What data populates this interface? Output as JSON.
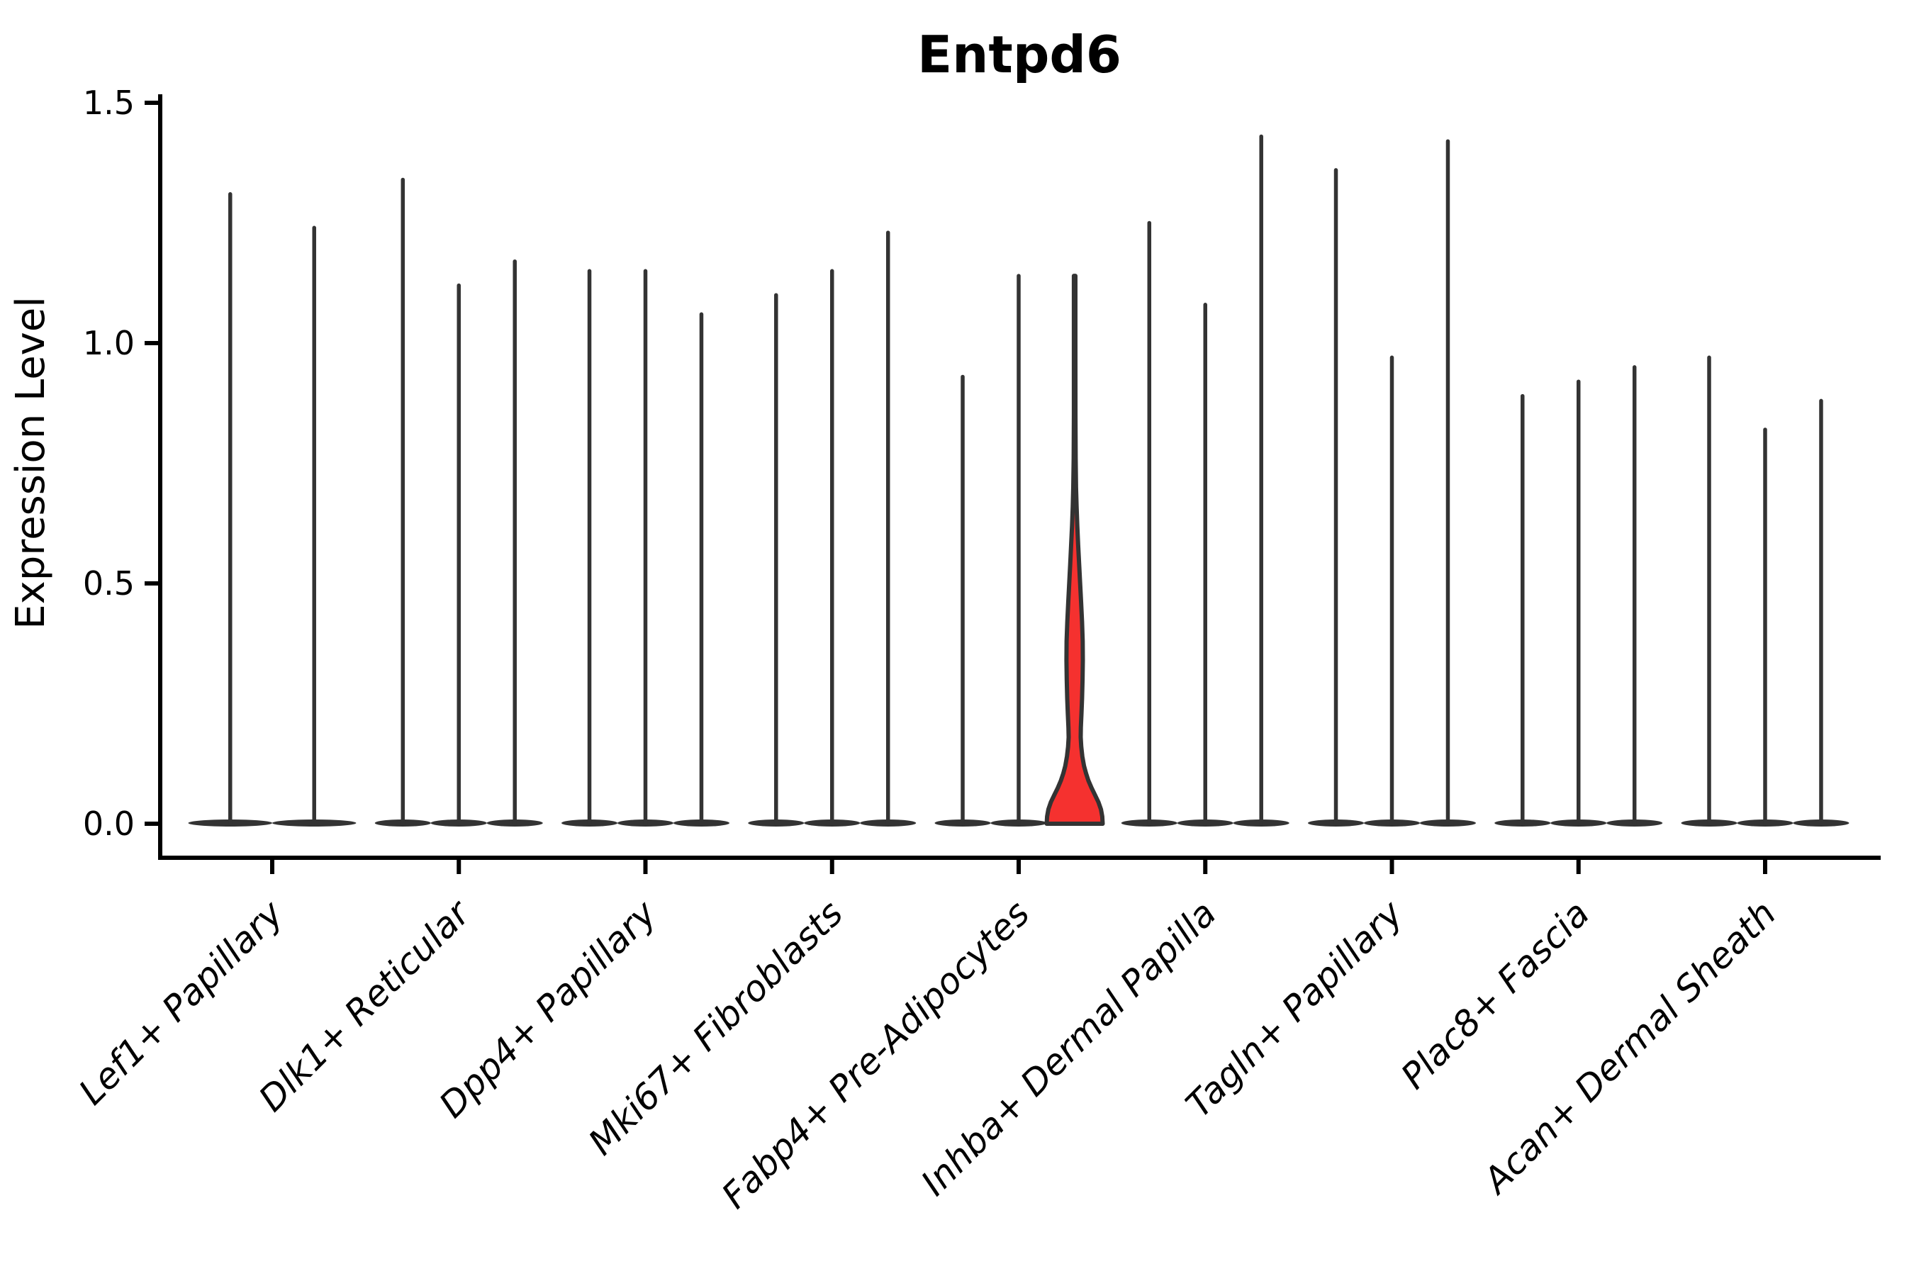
{
  "title": "Entpd6",
  "y_axis": {
    "label": "Expression Level",
    "tick_labels": [
      "0.0",
      "0.5",
      "1.0",
      "1.5"
    ],
    "tick_values": [
      0,
      0.5,
      1.0,
      1.5
    ]
  },
  "colors": {
    "background": "#ffffff",
    "axis": "#000000",
    "violin_stroke": "#333333",
    "highlight_fill": "#f5312f"
  },
  "chart_data": {
    "type": "violin",
    "title": "Entpd6",
    "xlabel": "",
    "ylabel": "Expression Level",
    "ylim": [
      0,
      1.5
    ],
    "yticks": [
      0,
      0.5,
      1.0,
      1.5
    ],
    "grid": false,
    "legend": "none",
    "x_tick_rotation_deg": 45,
    "description": "Stacked-group violin plot; each category holds thin spike violins (expression concentrated at 0 with a hairline up to the max value). One violin (3rd of Fabp4+ Pre-Adipocytes) is filled red with a visible density bulge.",
    "categories": [
      "Lef1+ Papillary",
      "Dlk1+ Reticular",
      "Dpp4+ Papillary",
      "Mki67+ Fibroblasts",
      "Fabp4+ Pre-Adipocytes",
      "Inhba+ Dermal Papilla",
      "Tagln+ Papillary",
      "Plac8+ Fascia",
      "Acan+ Dermal Sheath"
    ],
    "groups": [
      {
        "category": "Lef1+ Papillary",
        "violin_maxima": [
          1.31,
          1.24
        ]
      },
      {
        "category": "Dlk1+ Reticular",
        "violin_maxima": [
          1.34,
          1.12,
          1.17
        ]
      },
      {
        "category": "Dpp4+ Papillary",
        "violin_maxima": [
          1.15,
          1.15,
          1.06
        ]
      },
      {
        "category": "Mki67+ Fibroblasts",
        "violin_maxima": [
          1.1,
          1.15,
          1.23
        ]
      },
      {
        "category": "Fabp4+ Pre-Adipocytes",
        "violin_maxima": [
          0.93,
          1.14,
          1.14
        ],
        "highlight_index": 2
      },
      {
        "category": "Inhba+ Dermal Papilla",
        "violin_maxima": [
          1.25,
          1.08,
          1.43
        ]
      },
      {
        "category": "Tagln+ Papillary",
        "violin_maxima": [
          1.36,
          0.97,
          1.42
        ]
      },
      {
        "category": "Plac8+ Fascia",
        "violin_maxima": [
          0.89,
          0.92,
          0.95
        ]
      },
      {
        "category": "Acan+ Dermal Sheath",
        "violin_maxima": [
          0.97,
          0.82,
          0.88
        ]
      }
    ],
    "highlight_violin": {
      "category": "Fabp4+ Pre-Adipocytes",
      "position_in_group": 3,
      "max": 1.14,
      "fill": "#f5312f",
      "width_profile": [
        [
          0.0,
          1.0
        ],
        [
          0.015,
          0.985
        ],
        [
          0.03,
          0.94
        ],
        [
          0.045,
          0.85
        ],
        [
          0.06,
          0.725
        ],
        [
          0.075,
          0.6
        ],
        [
          0.09,
          0.49
        ],
        [
          0.105,
          0.405
        ],
        [
          0.12,
          0.335
        ],
        [
          0.14,
          0.275
        ],
        [
          0.16,
          0.235
        ],
        [
          0.18,
          0.215
        ],
        [
          0.2,
          0.222
        ],
        [
          0.23,
          0.245
        ],
        [
          0.26,
          0.265
        ],
        [
          0.3,
          0.283
        ],
        [
          0.34,
          0.292
        ],
        [
          0.38,
          0.287
        ],
        [
          0.42,
          0.263
        ],
        [
          0.46,
          0.23
        ],
        [
          0.5,
          0.195
        ],
        [
          0.54,
          0.16
        ],
        [
          0.58,
          0.125
        ],
        [
          0.62,
          0.094
        ],
        [
          0.66,
          0.068
        ],
        [
          0.7,
          0.05
        ],
        [
          0.76,
          0.036
        ],
        [
          0.85,
          0.028
        ],
        [
          1.0,
          0.026
        ],
        [
          1.14,
          0.026
        ]
      ]
    }
  }
}
